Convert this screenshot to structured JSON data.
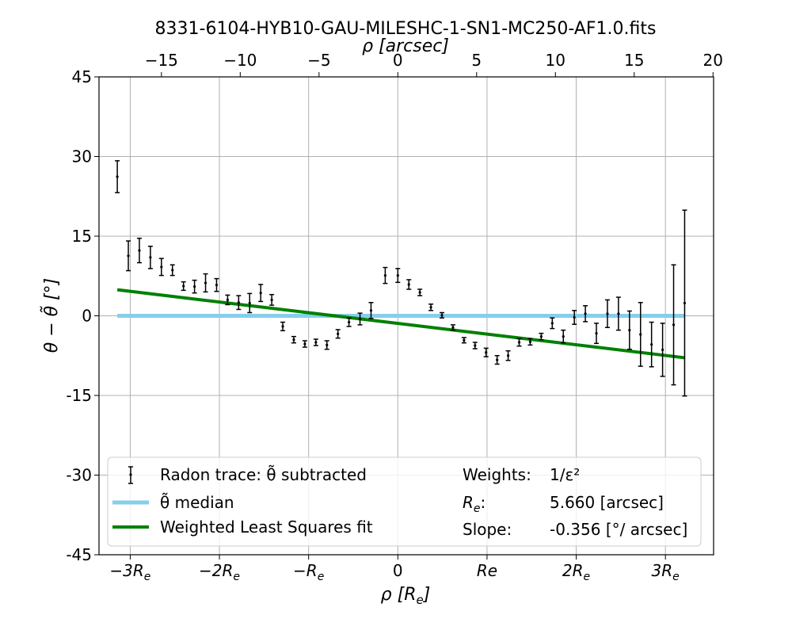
{
  "chart_data": {
    "type": "scatter",
    "title": "8331-6104-HYB10-GAU-MILESHC-1-SN1-MC250-AF1.0.fits",
    "xlabel": "ρ [R_e]",
    "top_xlabel": "ρ [arcsec]",
    "ylabel": "θ − θ̃ [°]",
    "re_arcsec": 5.66,
    "xlim_re": [
      -3.35,
      3.54
    ],
    "ylim": [
      -45,
      45
    ],
    "grid": true,
    "legend_placement": "lower center",
    "x_ticks_re": [
      {
        "value": -3,
        "label": "−3R"
      },
      {
        "value": -2,
        "label": "−2R"
      },
      {
        "value": -1,
        "label": "−R"
      },
      {
        "value": 0,
        "label": "0"
      },
      {
        "value": 1,
        "label": "Re"
      },
      {
        "value": 2,
        "label": "2R"
      },
      {
        "value": 3,
        "label": "3R"
      }
    ],
    "x_tick_subscript": "e",
    "top_ticks_arcsec": [
      {
        "value": -15,
        "label": "−15"
      },
      {
        "value": -10,
        "label": "−10"
      },
      {
        "value": -5,
        "label": "−5"
      },
      {
        "value": 0,
        "label": "0"
      },
      {
        "value": 5,
        "label": "5"
      },
      {
        "value": 10,
        "label": "10"
      },
      {
        "value": 15,
        "label": "15"
      },
      {
        "value": 20,
        "label": "20"
      }
    ],
    "y_ticks": [
      {
        "value": 45,
        "label": "45"
      },
      {
        "value": 30,
        "label": "30"
      },
      {
        "value": 15,
        "label": "15"
      },
      {
        "value": 0,
        "label": "0"
      },
      {
        "value": -15,
        "label": "-15"
      },
      {
        "value": -30,
        "label": "-30"
      },
      {
        "value": -45,
        "label": "-45"
      }
    ],
    "series": [
      {
        "name": "Radon trace: θ̃ subtracted",
        "color": "#000000",
        "points": [
          {
            "x": -17.8,
            "y": 26.2,
            "err": 3.0
          },
          {
            "x": -17.1,
            "y": 11.3,
            "err": 2.8
          },
          {
            "x": -16.4,
            "y": 12.3,
            "err": 2.3
          },
          {
            "x": -15.7,
            "y": 11.0,
            "err": 2.1
          },
          {
            "x": -15.0,
            "y": 9.2,
            "err": 1.6
          },
          {
            "x": -14.3,
            "y": 8.6,
            "err": 1.0
          },
          {
            "x": -13.6,
            "y": 5.6,
            "err": 0.8
          },
          {
            "x": -12.9,
            "y": 5.5,
            "err": 1.2
          },
          {
            "x": -12.2,
            "y": 6.2,
            "err": 1.7
          },
          {
            "x": -11.5,
            "y": 5.8,
            "err": 1.2
          },
          {
            "x": -10.8,
            "y": 3.0,
            "err": 0.9
          },
          {
            "x": -10.1,
            "y": 2.5,
            "err": 1.3
          },
          {
            "x": -9.4,
            "y": 2.4,
            "err": 1.8
          },
          {
            "x": -8.7,
            "y": 4.3,
            "err": 1.6
          },
          {
            "x": -8.0,
            "y": 3.0,
            "err": 1.0
          },
          {
            "x": -7.3,
            "y": -2.0,
            "err": 0.8
          },
          {
            "x": -6.6,
            "y": -4.5,
            "err": 0.6
          },
          {
            "x": -5.9,
            "y": -5.3,
            "err": 0.6
          },
          {
            "x": -5.2,
            "y": -5.0,
            "err": 0.6
          },
          {
            "x": -4.5,
            "y": -5.5,
            "err": 0.8
          },
          {
            "x": -3.8,
            "y": -3.4,
            "err": 0.8
          },
          {
            "x": -3.1,
            "y": -1.2,
            "err": 0.8
          },
          {
            "x": -2.4,
            "y": -0.6,
            "err": 1.1
          },
          {
            "x": -1.7,
            "y": 1.0,
            "err": 1.5
          },
          {
            "x": -0.8,
            "y": 7.6,
            "err": 1.5
          },
          {
            "x": 0.0,
            "y": 7.6,
            "err": 1.3
          },
          {
            "x": 0.7,
            "y": 5.9,
            "err": 0.9
          },
          {
            "x": 1.4,
            "y": 4.4,
            "err": 0.6
          },
          {
            "x": 2.1,
            "y": 1.6,
            "err": 0.6
          },
          {
            "x": 2.8,
            "y": 0.1,
            "err": 0.5
          },
          {
            "x": 3.5,
            "y": -2.2,
            "err": 0.5
          },
          {
            "x": 4.2,
            "y": -4.6,
            "err": 0.5
          },
          {
            "x": 4.9,
            "y": -5.6,
            "err": 0.6
          },
          {
            "x": 5.6,
            "y": -6.9,
            "err": 0.8
          },
          {
            "x": 6.3,
            "y": -8.3,
            "err": 0.8
          },
          {
            "x": 7.0,
            "y": -7.5,
            "err": 0.9
          },
          {
            "x": 7.7,
            "y": -5.0,
            "err": 0.7
          },
          {
            "x": 8.4,
            "y": -4.9,
            "err": 0.6
          },
          {
            "x": 9.1,
            "y": -3.9,
            "err": 0.6
          },
          {
            "x": 9.8,
            "y": -1.4,
            "err": 1.0
          },
          {
            "x": 10.5,
            "y": -3.9,
            "err": 1.2
          },
          {
            "x": 11.2,
            "y": -0.3,
            "err": 1.3
          },
          {
            "x": 11.9,
            "y": 0.4,
            "err": 1.5
          },
          {
            "x": 12.6,
            "y": -3.3,
            "err": 1.9
          },
          {
            "x": 13.3,
            "y": 0.4,
            "err": 2.6
          },
          {
            "x": 14.0,
            "y": 0.4,
            "err": 3.1
          },
          {
            "x": 14.7,
            "y": -2.7,
            "err": 3.6
          },
          {
            "x": 15.4,
            "y": -3.5,
            "err": 6.0
          },
          {
            "x": 16.1,
            "y": -5.4,
            "err": 4.2
          },
          {
            "x": 16.8,
            "y": -6.4,
            "err": 5.0
          },
          {
            "x": 17.5,
            "y": -1.7,
            "err": 11.3
          },
          {
            "x": 18.2,
            "y": 2.4,
            "err": 17.5
          }
        ]
      },
      {
        "name": "θ̃ median",
        "color": "#87ceeb",
        "type": "line",
        "x": [
          -17.8,
          18.2
        ],
        "y": [
          0,
          0
        ]
      },
      {
        "name": "Weighted Least Squares fit",
        "color": "#008000",
        "type": "line",
        "x": [
          -17.8,
          18.2
        ],
        "y": [
          4.9,
          -7.9
        ]
      }
    ],
    "legend": {
      "entries": [
        {
          "label": "Radon trace: θ̃ subtracted",
          "marker": "errorbar"
        },
        {
          "label": "θ̃ median",
          "marker": "line",
          "color": "#87ceeb"
        },
        {
          "label": "Weighted Least Squares fit",
          "marker": "line",
          "color": "#008000"
        }
      ],
      "info": [
        {
          "key": "Weights:",
          "value": "1/ε²"
        },
        {
          "key": "R:",
          "value": "5.660 [arcsec]"
        },
        {
          "key": "Slope:",
          "value": "-0.356 [°/ arcsec]"
        }
      ]
    }
  }
}
